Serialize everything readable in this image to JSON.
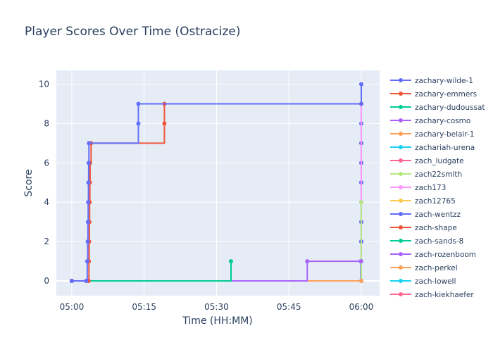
{
  "chart_data": {
    "type": "line",
    "title": "Player Scores Over Time (Ostracize)",
    "xlabel": "Time (HH:MM)",
    "ylabel": "Score",
    "x_tick_labels": [
      "05:00",
      "05:15",
      "05:30",
      "05:45",
      "06:00"
    ],
    "x_tick_minutes": [
      0,
      15,
      30,
      45,
      60
    ],
    "x_range_minutes": [
      -3.2,
      63.8
    ],
    "y_ticks": [
      0,
      2,
      4,
      6,
      8,
      10
    ],
    "ylim": [
      -0.75,
      10.7
    ],
    "grid": true,
    "legend_position": "right",
    "series": [
      {
        "name": "zachary-wilde-1",
        "color": "#636efa",
        "x_minutes": [
          0,
          3,
          3.2,
          3.3,
          3.35,
          3.4,
          3.45,
          3.5,
          3.55,
          13.8,
          13.8,
          60
        ],
        "y": [
          0,
          0,
          1,
          2,
          3,
          4,
          5,
          6,
          7,
          8,
          9,
          9
        ]
      },
      {
        "name": "zachary-emmers",
        "color": "#ef553b",
        "x_minutes": [
          0,
          3.5,
          3.55,
          3.6,
          3.65,
          3.7,
          3.75,
          3.8,
          4.0,
          19.2,
          19.2,
          60
        ],
        "y": [
          0,
          0,
          1,
          2,
          3,
          4,
          5,
          6,
          7,
          8,
          9,
          9
        ]
      },
      {
        "name": "zachary-dudoussat",
        "color": "#00cc96",
        "x_minutes": [
          0,
          33.0
        ],
        "y": [
          0,
          1
        ]
      },
      {
        "name": "zachary-cosmo",
        "color": "#ab63fa",
        "x_minutes": [
          0,
          48.8,
          60
        ],
        "y": [
          0,
          1,
          1
        ]
      },
      {
        "name": "zachary-belair-1",
        "color": "#ffa15a",
        "x_minutes": [
          0,
          60
        ],
        "y": [
          0,
          0
        ]
      },
      {
        "name": "zachariah-urena",
        "color": "#19d3f3",
        "x_minutes": [
          0,
          60
        ],
        "y": [
          0,
          0
        ]
      },
      {
        "name": "zach_ludgate",
        "color": "#ff6692",
        "x_minutes": [
          0,
          60
        ],
        "y": [
          0,
          0
        ]
      },
      {
        "name": "zach22smith",
        "color": "#b6e880",
        "x_minutes": [
          0,
          60
        ],
        "y": [
          0,
          4
        ]
      },
      {
        "name": "zach173",
        "color": "#ff97ff",
        "x_minutes": [
          0,
          60
        ],
        "y": [
          0,
          9
        ]
      },
      {
        "name": "zach12765",
        "color": "#fecb52",
        "x_minutes": [
          0,
          60
        ],
        "y": [
          0,
          0
        ]
      },
      {
        "name": "zach-wentzz",
        "color": "#636efa",
        "x_minutes": [
          0,
          3.0,
          59.9,
          59.95,
          60,
          60,
          60,
          60,
          60,
          60,
          60,
          60,
          60
        ],
        "y": [
          0,
          0,
          1,
          1,
          2,
          2,
          3,
          4,
          5,
          6,
          7,
          8,
          10
        ]
      },
      {
        "name": "zach-shape",
        "color": "#ef553b",
        "x_minutes": [
          0,
          60
        ],
        "y": [
          0,
          0
        ]
      },
      {
        "name": "zach-sands-8",
        "color": "#00cc96",
        "x_minutes": [
          0,
          60
        ],
        "y": [
          0,
          0
        ]
      },
      {
        "name": "zach-rozenboom",
        "color": "#ab63fa",
        "x_minutes": [
          0,
          60
        ],
        "y": [
          0,
          5
        ]
      },
      {
        "name": "zach-perkel",
        "color": "#ffa15a",
        "x_minutes": [
          0,
          60,
          60,
          60
        ],
        "y": [
          0,
          3,
          6,
          7
        ]
      },
      {
        "name": "zach-lowell",
        "color": "#19d3f3",
        "x_minutes": [
          0,
          60
        ],
        "y": [
          0,
          0
        ]
      },
      {
        "name": "zach-kiekhaefer",
        "color": "#ff6692",
        "x_minutes": [
          0,
          60
        ],
        "y": [
          0,
          0
        ]
      }
    ]
  }
}
